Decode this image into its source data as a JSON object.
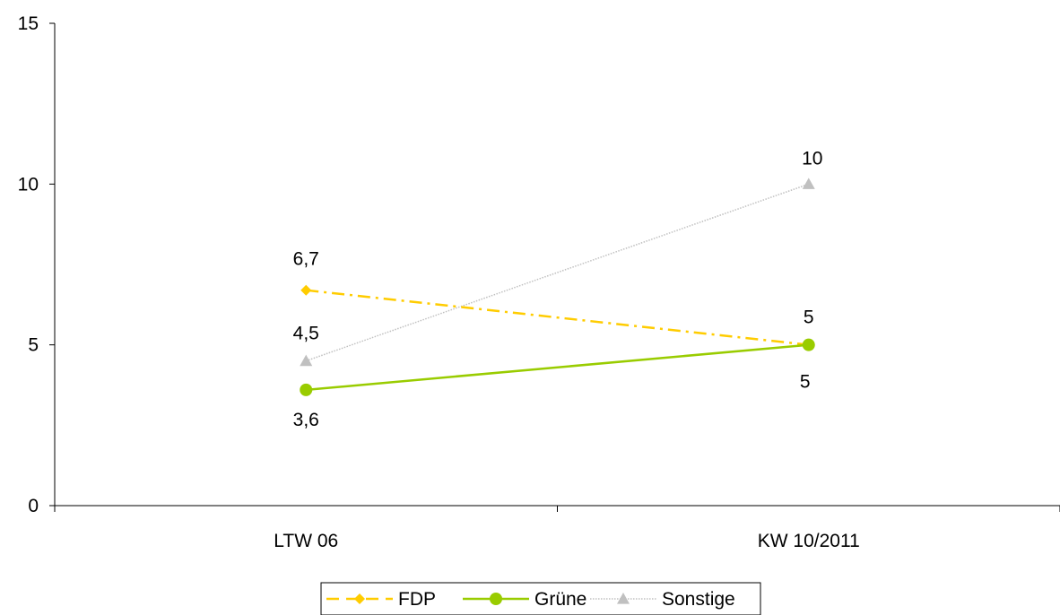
{
  "chart_data": {
    "type": "line",
    "title": "",
    "xlabel": "",
    "ylabel": "",
    "categories": [
      "LTW 06",
      "KW 10/2011"
    ],
    "ylim": [
      0,
      15
    ],
    "yticks": [
      0,
      5,
      10,
      15
    ],
    "grid": false,
    "legend_position": "bottom",
    "series": [
      {
        "name": "FDP",
        "values": [
          6.7,
          5
        ],
        "labels": [
          "6,7",
          "5"
        ],
        "color": "#FFCC00",
        "marker": "diamond",
        "line_style": "dash-dot"
      },
      {
        "name": "Grüne",
        "values": [
          3.6,
          5
        ],
        "labels": [
          "3,6",
          "5"
        ],
        "color": "#99CC00",
        "marker": "circle",
        "line_style": "solid"
      },
      {
        "name": "Sonstige",
        "values": [
          4.5,
          10
        ],
        "labels": [
          "4,5",
          "10"
        ],
        "color": "#C0C0C0",
        "marker": "triangle",
        "line_style": "dotted"
      }
    ]
  }
}
